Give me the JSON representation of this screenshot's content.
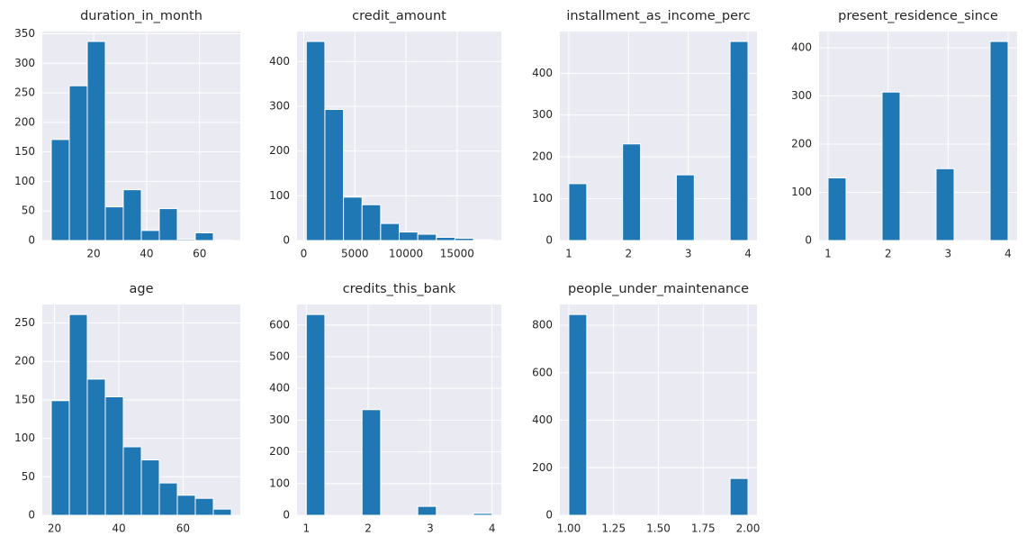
{
  "chart_data": [
    {
      "type": "histogram",
      "title": "duration_in_month",
      "color": "#1f77b4",
      "grid": true,
      "bins": [
        4,
        10.8,
        17.6,
        24.4,
        31.2,
        38,
        44.8,
        51.6,
        58.4,
        65.2,
        72
      ],
      "counts": [
        171,
        262,
        337,
        57,
        86,
        17,
        54,
        2,
        13,
        1
      ],
      "xlim": [
        0.6,
        75.4
      ],
      "ylim": [
        0,
        353.85
      ],
      "xticks": [
        20,
        40,
        60
      ],
      "yticks": [
        0,
        50,
        100,
        150,
        200,
        250,
        300,
        350
      ]
    },
    {
      "type": "histogram",
      "title": "credit_amount",
      "color": "#1f77b4",
      "grid": true,
      "bins": [
        250,
        2067.4,
        3884.8,
        5702.2,
        7519.6,
        9337,
        11154.4,
        12971.8,
        14789.2,
        16606.6,
        18424
      ],
      "counts": [
        445,
        293,
        97,
        80,
        38,
        19,
        14,
        7,
        5,
        2
      ],
      "xlim": [
        -658.7,
        19332.7
      ],
      "ylim": [
        0,
        467.25
      ],
      "xticks": [
        0,
        5000,
        10000,
        15000
      ],
      "yticks": [
        0,
        100,
        200,
        300,
        400
      ]
    },
    {
      "type": "histogram",
      "title": "installment_as_income_perc",
      "color": "#1f77b4",
      "grid": true,
      "bins": [
        1,
        1.3,
        1.6,
        1.9,
        2.2,
        2.5,
        2.8,
        3.1,
        3.4,
        3.7,
        4
      ],
      "counts": [
        136,
        0,
        0,
        231,
        0,
        0,
        157,
        0,
        0,
        476
      ],
      "xlim": [
        0.85,
        4.15
      ],
      "ylim": [
        0,
        499.8
      ],
      "xticks": [
        1,
        2,
        3,
        4
      ],
      "yticks": [
        0,
        100,
        200,
        300,
        400
      ]
    },
    {
      "type": "histogram",
      "title": "present_residence_since",
      "color": "#1f77b4",
      "grid": true,
      "bins": [
        1,
        1.3,
        1.6,
        1.9,
        2.2,
        2.5,
        2.8,
        3.1,
        3.4,
        3.7,
        4
      ],
      "counts": [
        130,
        0,
        0,
        308,
        0,
        0,
        149,
        0,
        0,
        413
      ],
      "xlim": [
        0.85,
        4.15
      ],
      "ylim": [
        0,
        433.65
      ],
      "xticks": [
        1,
        2,
        3,
        4
      ],
      "yticks": [
        0,
        100,
        200,
        300,
        400
      ]
    },
    {
      "type": "histogram",
      "title": "age",
      "color": "#1f77b4",
      "grid": true,
      "bins": [
        19,
        24.6,
        30.2,
        35.8,
        41.4,
        47,
        52.6,
        58.2,
        63.8,
        69.4,
        75
      ],
      "counts": [
        149,
        261,
        177,
        154,
        89,
        72,
        42,
        26,
        22,
        8
      ],
      "xlim": [
        16.2,
        77.8
      ],
      "ylim": [
        0,
        274.05
      ],
      "xticks": [
        20,
        40,
        60
      ],
      "yticks": [
        0,
        50,
        100,
        150,
        200,
        250
      ]
    },
    {
      "type": "histogram",
      "title": "credits_this_bank",
      "color": "#1f77b4",
      "grid": true,
      "bins": [
        1,
        1.3,
        1.6,
        1.9,
        2.2,
        2.5,
        2.8,
        3.1,
        3.4,
        3.7,
        4
      ],
      "counts": [
        633,
        0,
        0,
        333,
        0,
        0,
        28,
        0,
        0,
        6
      ],
      "xlim": [
        0.85,
        4.15
      ],
      "ylim": [
        0,
        664.65
      ],
      "xticks": [
        1,
        2,
        3,
        4
      ],
      "yticks": [
        0,
        100,
        200,
        300,
        400,
        500,
        600
      ]
    },
    {
      "type": "histogram",
      "title": "people_under_maintenance",
      "color": "#1f77b4",
      "grid": true,
      "bins": [
        1,
        1.1,
        1.2,
        1.3,
        1.4,
        1.5,
        1.6,
        1.7,
        1.8,
        1.9,
        2
      ],
      "counts": [
        845,
        0,
        0,
        0,
        0,
        0,
        0,
        0,
        0,
        155
      ],
      "xlim": [
        0.95,
        2.05
      ],
      "ylim": [
        0,
        887.25
      ],
      "xticks": [
        {
          "value": 1,
          "label": "1.00"
        },
        1.25,
        {
          "value": 1.5,
          "label": "1.50"
        },
        1.75,
        {
          "value": 2,
          "label": "2.00"
        }
      ],
      "yticks": [
        0,
        200,
        400,
        600,
        800
      ]
    }
  ]
}
